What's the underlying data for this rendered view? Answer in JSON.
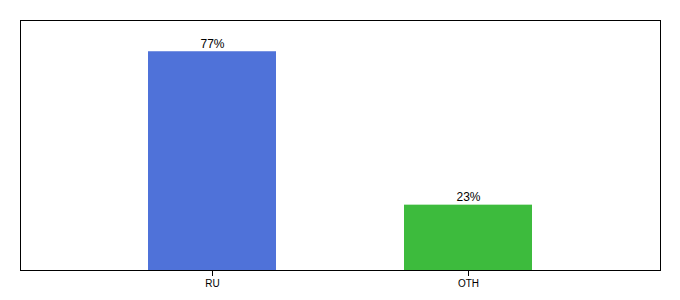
{
  "chart_data": {
    "type": "bar",
    "categories": [
      "RU",
      "OTH"
    ],
    "values": [
      77,
      23
    ],
    "value_labels": [
      "77%",
      "23%"
    ],
    "colors": [
      "#4f72d9",
      "#3dbb3d"
    ],
    "ylim": [
      0,
      88
    ],
    "data_labels": true,
    "tick_labels": "x"
  }
}
